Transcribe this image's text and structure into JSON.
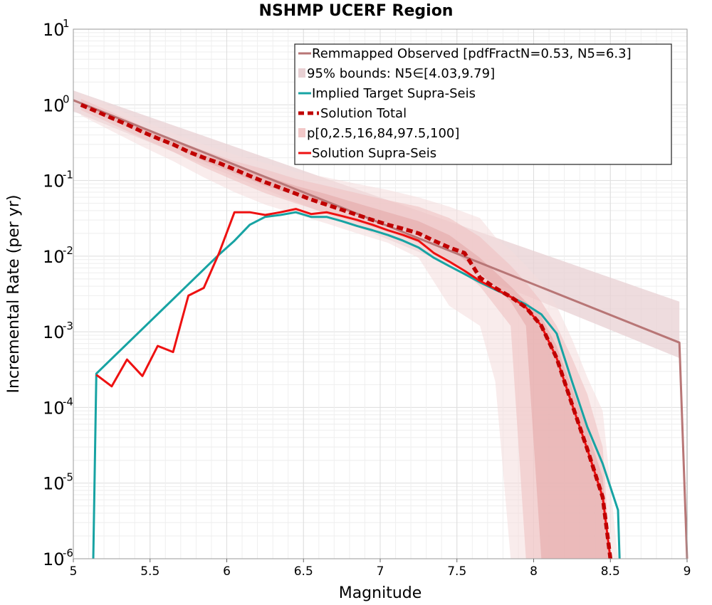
{
  "chart_data": {
    "type": "line",
    "title": "NSHMP UCERF Region",
    "xlabel": "Magnitude",
    "ylabel": "Incremental Rate (per yr)",
    "xlim": [
      5,
      9
    ],
    "ylim_log10": [
      -6,
      1
    ],
    "yscale": "log",
    "x_ticks": [
      {
        "value": 5,
        "label": "5"
      },
      {
        "value": 5.5,
        "label": "5.5"
      },
      {
        "value": 6,
        "label": "6"
      },
      {
        "value": 6.5,
        "label": "6.5"
      },
      {
        "value": 7,
        "label": "7"
      },
      {
        "value": 7.5,
        "label": "7.5"
      },
      {
        "value": 8,
        "label": "8"
      },
      {
        "value": 8.5,
        "label": "8.5"
      },
      {
        "value": 9,
        "label": "9"
      }
    ],
    "y_ticks": [
      {
        "exp": 1,
        "base": "10",
        "sup": "1"
      },
      {
        "exp": 0,
        "base": "10",
        "sup": "0"
      },
      {
        "exp": -1,
        "base": "10",
        "sup": "-1"
      },
      {
        "exp": -2,
        "base": "10",
        "sup": "-2"
      },
      {
        "exp": -3,
        "base": "10",
        "sup": "-3"
      },
      {
        "exp": -4,
        "base": "10",
        "sup": "-4"
      },
      {
        "exp": -5,
        "base": "10",
        "sup": "-5"
      },
      {
        "exp": -6,
        "base": "10",
        "sup": "-6"
      }
    ],
    "grid": true,
    "legend_position": "top-right",
    "legend": [
      {
        "key": "obs",
        "label": "Remmapped Observed [pdfFractN=0.53, N5=6.3]",
        "style": "line",
        "color": "#b87676"
      },
      {
        "key": "bounds95",
        "label": "95% bounds: N5∈[4.03,9.79]",
        "style": "band",
        "color": "#e8d0d3"
      },
      {
        "key": "target",
        "label": "Implied Target Supra-Seis",
        "style": "line",
        "color": "#17a3a3"
      },
      {
        "key": "soltotal",
        "label": "Solution Total",
        "style": "dashed",
        "color": "#c00000"
      },
      {
        "key": "pctl",
        "label": "p[0,2.5,16,84,97.5,100]",
        "style": "band",
        "color": "#f2c8c8"
      },
      {
        "key": "solsupra",
        "label": "Solution Supra-Seis",
        "style": "line",
        "color": "#ee1111"
      }
    ],
    "series": [
      {
        "name": "Remmapped Observed [pdfFractN=0.53, N5=6.3]",
        "color": "#b87676",
        "x": [
          5.0,
          8.95,
          8.95,
          9.0
        ],
        "y": [
          1.15,
          0.00072,
          0.00072,
          1e-06
        ]
      },
      {
        "name": "Implied Target Supra-Seis",
        "color": "#17a3a3",
        "x": [
          5.13,
          5.15,
          5.95,
          6.05,
          6.15,
          6.25,
          6.35,
          6.45,
          6.55,
          6.65,
          6.75,
          6.85,
          6.95,
          7.05,
          7.15,
          7.25,
          7.35,
          7.45,
          7.55,
          7.65,
          7.75,
          7.85,
          7.95,
          8.05,
          8.15,
          8.25,
          8.35,
          8.45,
          8.55,
          8.56
        ],
        "y": [
          1e-06,
          0.00028,
          0.0105,
          0.016,
          0.026,
          0.033,
          0.035,
          0.038,
          0.033,
          0.033,
          0.029,
          0.025,
          0.022,
          0.019,
          0.016,
          0.013,
          0.0095,
          0.0074,
          0.0058,
          0.0045,
          0.0036,
          0.0029,
          0.0023,
          0.0017,
          0.00095,
          0.00022,
          5.5e-05,
          1.8e-05,
          4.4e-06,
          1e-06
        ]
      },
      {
        "name": "Solution Supra-Seis",
        "color": "#ee1111",
        "x": [
          5.15,
          5.25,
          5.35,
          5.45,
          5.55,
          5.65,
          5.75,
          5.85,
          5.95,
          6.05,
          6.15,
          6.25,
          6.35,
          6.45,
          6.55,
          6.65,
          6.75,
          6.85,
          6.95,
          7.05,
          7.15,
          7.25,
          7.35,
          7.45,
          7.55,
          7.65,
          7.75,
          7.85,
          7.95,
          8.05,
          8.15,
          8.25,
          8.35,
          8.45,
          8.5
        ],
        "y": [
          0.00027,
          0.00019,
          0.00043,
          0.00026,
          0.00065,
          0.00054,
          0.003,
          0.0038,
          0.011,
          0.038,
          0.038,
          0.035,
          0.038,
          0.042,
          0.036,
          0.038,
          0.034,
          0.03,
          0.026,
          0.022,
          0.019,
          0.016,
          0.011,
          0.0085,
          0.0064,
          0.0047,
          0.0037,
          0.0029,
          0.0021,
          0.0012,
          0.00045,
          0.00011,
          2.8e-05,
          6.5e-06,
          1e-06
        ]
      },
      {
        "name": "Solution Total",
        "color": "#c00000",
        "x": [
          5.05,
          5.15,
          5.25,
          5.35,
          5.45,
          5.55,
          5.65,
          5.75,
          5.85,
          5.95,
          6.05,
          6.15,
          6.25,
          6.35,
          6.45,
          6.55,
          6.65,
          6.75,
          6.85,
          6.95,
          7.05,
          7.15,
          7.25,
          7.35,
          7.45,
          7.55,
          7.65,
          7.75,
          7.85,
          7.95,
          8.05,
          8.15,
          8.25,
          8.35,
          8.45,
          8.5
        ],
        "y": [
          1.0,
          0.82,
          0.67,
          0.55,
          0.44,
          0.36,
          0.3,
          0.24,
          0.2,
          0.17,
          0.14,
          0.115,
          0.095,
          0.08,
          0.067,
          0.056,
          0.048,
          0.041,
          0.035,
          0.03,
          0.026,
          0.023,
          0.02,
          0.016,
          0.013,
          0.011,
          0.0052,
          0.0038,
          0.0029,
          0.0021,
          0.0012,
          0.00045,
          0.00011,
          2.8e-05,
          6.5e-06,
          1e-06
        ]
      }
    ],
    "bands": [
      {
        "name": "95% bounds: N5∈[4.03,9.79]",
        "color": "#e8d0d3",
        "x": [
          5.0,
          8.95
        ],
        "lower": [
          0.82,
          0.00045
        ],
        "upper": [
          1.55,
          0.0025
        ]
      },
      {
        "name": "p 0-100",
        "color": "#f4dcdc",
        "x": [
          5.05,
          5.25,
          5.45,
          5.65,
          5.85,
          6.05,
          6.25,
          6.45,
          6.65,
          6.85,
          7.05,
          7.25,
          7.45,
          7.65,
          7.75,
          7.85,
          7.95,
          8.05,
          8.15,
          8.25,
          8.35,
          8.45,
          8.55
        ],
        "lower": [
          0.72,
          0.45,
          0.28,
          0.18,
          0.11,
          0.07,
          0.048,
          0.036,
          0.027,
          0.02,
          0.015,
          0.0095,
          0.0022,
          0.0012,
          0.00022,
          1e-06,
          1e-06,
          1e-06,
          1e-06,
          1e-06,
          1e-06,
          1e-06,
          1e-06
        ],
        "upper": [
          1.4,
          0.95,
          0.62,
          0.42,
          0.3,
          0.22,
          0.17,
          0.13,
          0.11,
          0.09,
          0.075,
          0.06,
          0.045,
          0.032,
          0.018,
          0.012,
          0.0075,
          0.0045,
          0.0022,
          0.0008,
          0.00025,
          9e-05,
          1e-06
        ]
      },
      {
        "name": "p 2.5-97.5",
        "color": "#eebfbf",
        "x": [
          5.05,
          5.25,
          5.45,
          5.65,
          5.85,
          6.05,
          6.25,
          6.45,
          6.65,
          6.85,
          7.05,
          7.25,
          7.45,
          7.65,
          7.85,
          7.95,
          8.05,
          8.15,
          8.25,
          8.35,
          8.45,
          8.5
        ],
        "lower": [
          0.85,
          0.56,
          0.36,
          0.24,
          0.15,
          0.1,
          0.068,
          0.05,
          0.037,
          0.028,
          0.021,
          0.015,
          0.009,
          0.004,
          0.0012,
          1e-06,
          1e-06,
          1e-06,
          1e-06,
          1e-06,
          1e-06,
          1e-06
        ],
        "upper": [
          1.2,
          0.8,
          0.52,
          0.35,
          0.25,
          0.18,
          0.14,
          0.105,
          0.085,
          0.068,
          0.055,
          0.045,
          0.032,
          0.018,
          0.0075,
          0.0045,
          0.0025,
          0.0012,
          0.00045,
          0.00015,
          3e-05,
          1e-06
        ]
      },
      {
        "name": "p 16-84",
        "color": "#e3a5a5",
        "x": [
          5.05,
          5.25,
          5.45,
          5.65,
          5.85,
          6.05,
          6.25,
          6.45,
          6.65,
          6.85,
          7.05,
          7.25,
          7.45,
          7.65,
          7.85,
          7.95,
          8.05,
          8.15,
          8.25,
          8.35,
          8.45,
          8.5
        ],
        "lower": [
          0.95,
          0.63,
          0.42,
          0.28,
          0.18,
          0.125,
          0.085,
          0.063,
          0.047,
          0.035,
          0.027,
          0.02,
          0.013,
          0.006,
          0.0025,
          0.0012,
          1e-06,
          1e-06,
          1e-06,
          1e-06,
          1e-06,
          1e-06
        ],
        "upper": [
          1.08,
          0.73,
          0.5,
          0.34,
          0.22,
          0.16,
          0.115,
          0.085,
          0.066,
          0.05,
          0.038,
          0.029,
          0.019,
          0.0095,
          0.004,
          0.0025,
          0.0016,
          0.00065,
          0.00018,
          5e-05,
          1.2e-05,
          1e-06
        ]
      }
    ]
  }
}
